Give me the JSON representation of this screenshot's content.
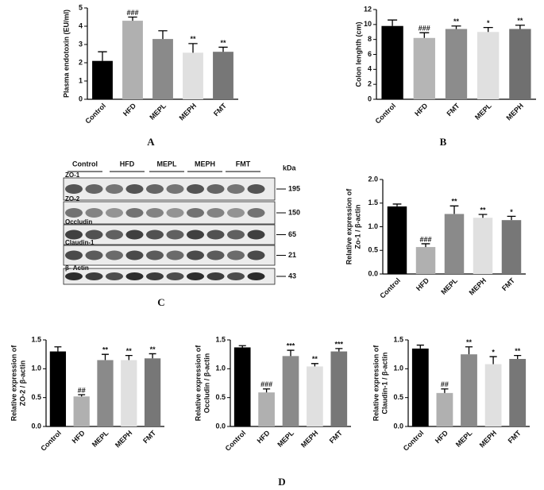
{
  "chart_data": [
    {
      "type": "bar",
      "ylabel": [
        "Plasma endotoxin (EU/ml)"
      ],
      "categories": [
        "Control",
        "HFD",
        "MEPL",
        "MEPH",
        "FMT"
      ],
      "values": [
        2.1,
        4.3,
        3.3,
        2.55,
        2.6
      ],
      "errors": [
        0.5,
        0.2,
        0.45,
        0.5,
        0.25
      ],
      "significance": [
        null,
        "###",
        null,
        "**",
        "**"
      ],
      "colors": [
        "#000000",
        "#b0b0b0",
        "#8a8a8a",
        "#e0e0e0",
        "#777777"
      ],
      "ylim": [
        0,
        5
      ],
      "yticks": [
        0,
        1,
        2,
        3,
        4,
        5
      ]
    },
    {
      "type": "bar",
      "ylabel": [
        "Colon lenghth (cm)"
      ],
      "categories": [
        "Control",
        "HFD",
        "FMT",
        "MEPL",
        "MEPH"
      ],
      "values": [
        9.8,
        8.2,
        9.4,
        9.0,
        9.4
      ],
      "errors": [
        0.8,
        0.7,
        0.4,
        0.6,
        0.5
      ],
      "significance": [
        null,
        "###",
        "**",
        "*",
        "**"
      ],
      "colors": [
        "#000000",
        "#b5b5b5",
        "#8c8c8c",
        "#e0e0e0",
        "#707070"
      ],
      "ylim": [
        0,
        12
      ],
      "yticks": [
        0,
        2,
        4,
        6,
        8,
        10,
        12
      ]
    },
    {
      "type": "bar",
      "ylabel": [
        "Relative expression of",
        "Zo-1 / β-actin"
      ],
      "categories": [
        "Control",
        "HFD",
        "MEPL",
        "MEPH",
        "FMT"
      ],
      "values": [
        1.43,
        0.57,
        1.27,
        1.19,
        1.14
      ],
      "errors": [
        0.05,
        0.07,
        0.17,
        0.07,
        0.08
      ],
      "significance": [
        null,
        "###",
        "**",
        "**",
        "*"
      ],
      "colors": [
        "#000000",
        "#b0b0b0",
        "#8a8a8a",
        "#e0e0e0",
        "#777777"
      ],
      "ylim": [
        0,
        2
      ],
      "yticks": [
        {
          "value": 0,
          "label": "0.0"
        },
        0.5,
        {
          "value": 1,
          "label": "1.0"
        },
        1.5,
        {
          "value": 2,
          "label": "2.0"
        }
      ]
    },
    {
      "type": "bar",
      "ylabel": [
        "Relative expression of",
        "ZO-2 / β-actin"
      ],
      "categories": [
        "Control",
        "HFD",
        "MEPL",
        "MEPH",
        "FMT"
      ],
      "values": [
        1.3,
        0.52,
        1.15,
        1.15,
        1.18
      ],
      "errors": [
        0.08,
        0.03,
        0.1,
        0.08,
        0.08
      ],
      "significance": [
        null,
        "##",
        "**",
        "**",
        "**"
      ],
      "colors": [
        "#000000",
        "#b0b0b0",
        "#8a8a8a",
        "#e0e0e0",
        "#777777"
      ],
      "ylim": [
        0,
        1.5
      ],
      "yticks": [
        {
          "value": 0,
          "label": "0.0"
        },
        0.5,
        {
          "value": 1,
          "label": "1.0"
        },
        1.5
      ]
    },
    {
      "type": "bar",
      "ylabel": [
        "Relative expression of",
        "Occludin / β-actin"
      ],
      "categories": [
        "Control",
        "HFD",
        "MEPL",
        "MEPH",
        "FMT"
      ],
      "values": [
        1.37,
        0.59,
        1.22,
        1.04,
        1.3
      ],
      "errors": [
        0.03,
        0.06,
        0.1,
        0.05,
        0.05
      ],
      "significance": [
        null,
        "###",
        "***",
        "**",
        "***"
      ],
      "colors": [
        "#000000",
        "#b0b0b0",
        "#8a8a8a",
        "#e0e0e0",
        "#777777"
      ],
      "ylim": [
        0,
        1.5
      ],
      "yticks": [
        {
          "value": 0,
          "label": "0.0"
        },
        0.5,
        {
          "value": 1,
          "label": "1.0"
        },
        1.5
      ]
    },
    {
      "type": "bar",
      "ylabel": [
        "Relative expression of",
        "Claudin-1 / β-actin"
      ],
      "categories": [
        "Control",
        "HFD",
        "MEPL",
        "MEPH",
        "FMT"
      ],
      "values": [
        1.35,
        0.58,
        1.25,
        1.08,
        1.17
      ],
      "errors": [
        0.06,
        0.07,
        0.13,
        0.13,
        0.06
      ],
      "significance": [
        null,
        "##",
        "**",
        "*",
        "**"
      ],
      "colors": [
        "#000000",
        "#b0b0b0",
        "#8a8a8a",
        "#e0e0e0",
        "#777777"
      ],
      "ylim": [
        0,
        1.5
      ],
      "yticks": [
        {
          "value": 0,
          "label": "0.0"
        },
        0.5,
        {
          "value": 1,
          "label": "1.0"
        },
        1.5
      ]
    }
  ],
  "blot": {
    "groups": [
      "Control",
      "HFD",
      "MEPL",
      "MEPH",
      "FMT"
    ],
    "unit": "kDa",
    "rows": [
      "ZO-1",
      "ZO-2",
      "Occludin",
      "Claudin-1",
      "β- Actin"
    ],
    "sizes": [
      "195",
      "150",
      "65",
      "21",
      "43"
    ]
  },
  "panel_labels": [
    "A",
    "B",
    "C",
    "D"
  ]
}
